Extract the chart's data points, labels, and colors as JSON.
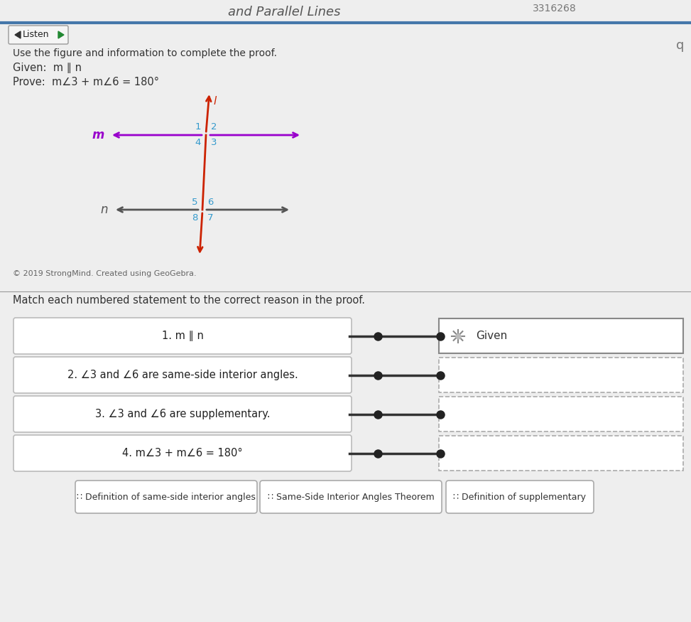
{
  "bg_color": "#d8d8d8",
  "content_bg": "#e8e8e8",
  "title_partial": "and Parallel Lines",
  "id_text": "3316268",
  "listen_btn": "Listen",
  "instruction": "Use the figure and information to complete the proof.",
  "given": "Given:  m ∥ n",
  "prove": "Prove:  m∠3 + m∠6 = 180°",
  "figure_copyright": "© 2019 StrongMind. Created using GeoGebra.",
  "match_instruction": "Match each numbered statement to the correct reason in the proof.",
  "statements": [
    "1. m ∥ n",
    "2. ∠3 and ∠6 are same-side interior angles.",
    "3. ∠3 and ∠6 are supplementary.",
    "4. m∠3 + m∠6 = 180°"
  ],
  "answer_choices": [
    "∷ Definition of same-side interior angles",
    "∷ Same-Side Interior Angles Theorem",
    "∷ Definition of supplementary"
  ],
  "line_m_color": "#9900CC",
  "line_n_color": "#555555",
  "transversal_color": "#cc2200",
  "angle_label_color": "#3399CC",
  "line_label_color_m": "#9900CC",
  "line_label_color_n": "#555555",
  "stmt_box_color": "#ffffff",
  "stmt_border_color": "#bbbbbb",
  "reason_box_filled_border": "#888888",
  "reason_box_empty_border": "#aaaaaa",
  "reason_box_color": "#ffffff",
  "answer_box_color": "#ffffff",
  "answer_box_border": "#aaaaaa",
  "connector_color": "#333333",
  "given_icon_color": "#888888",
  "header_line_color": "#4477aa",
  "separator_line_color": "#999999"
}
